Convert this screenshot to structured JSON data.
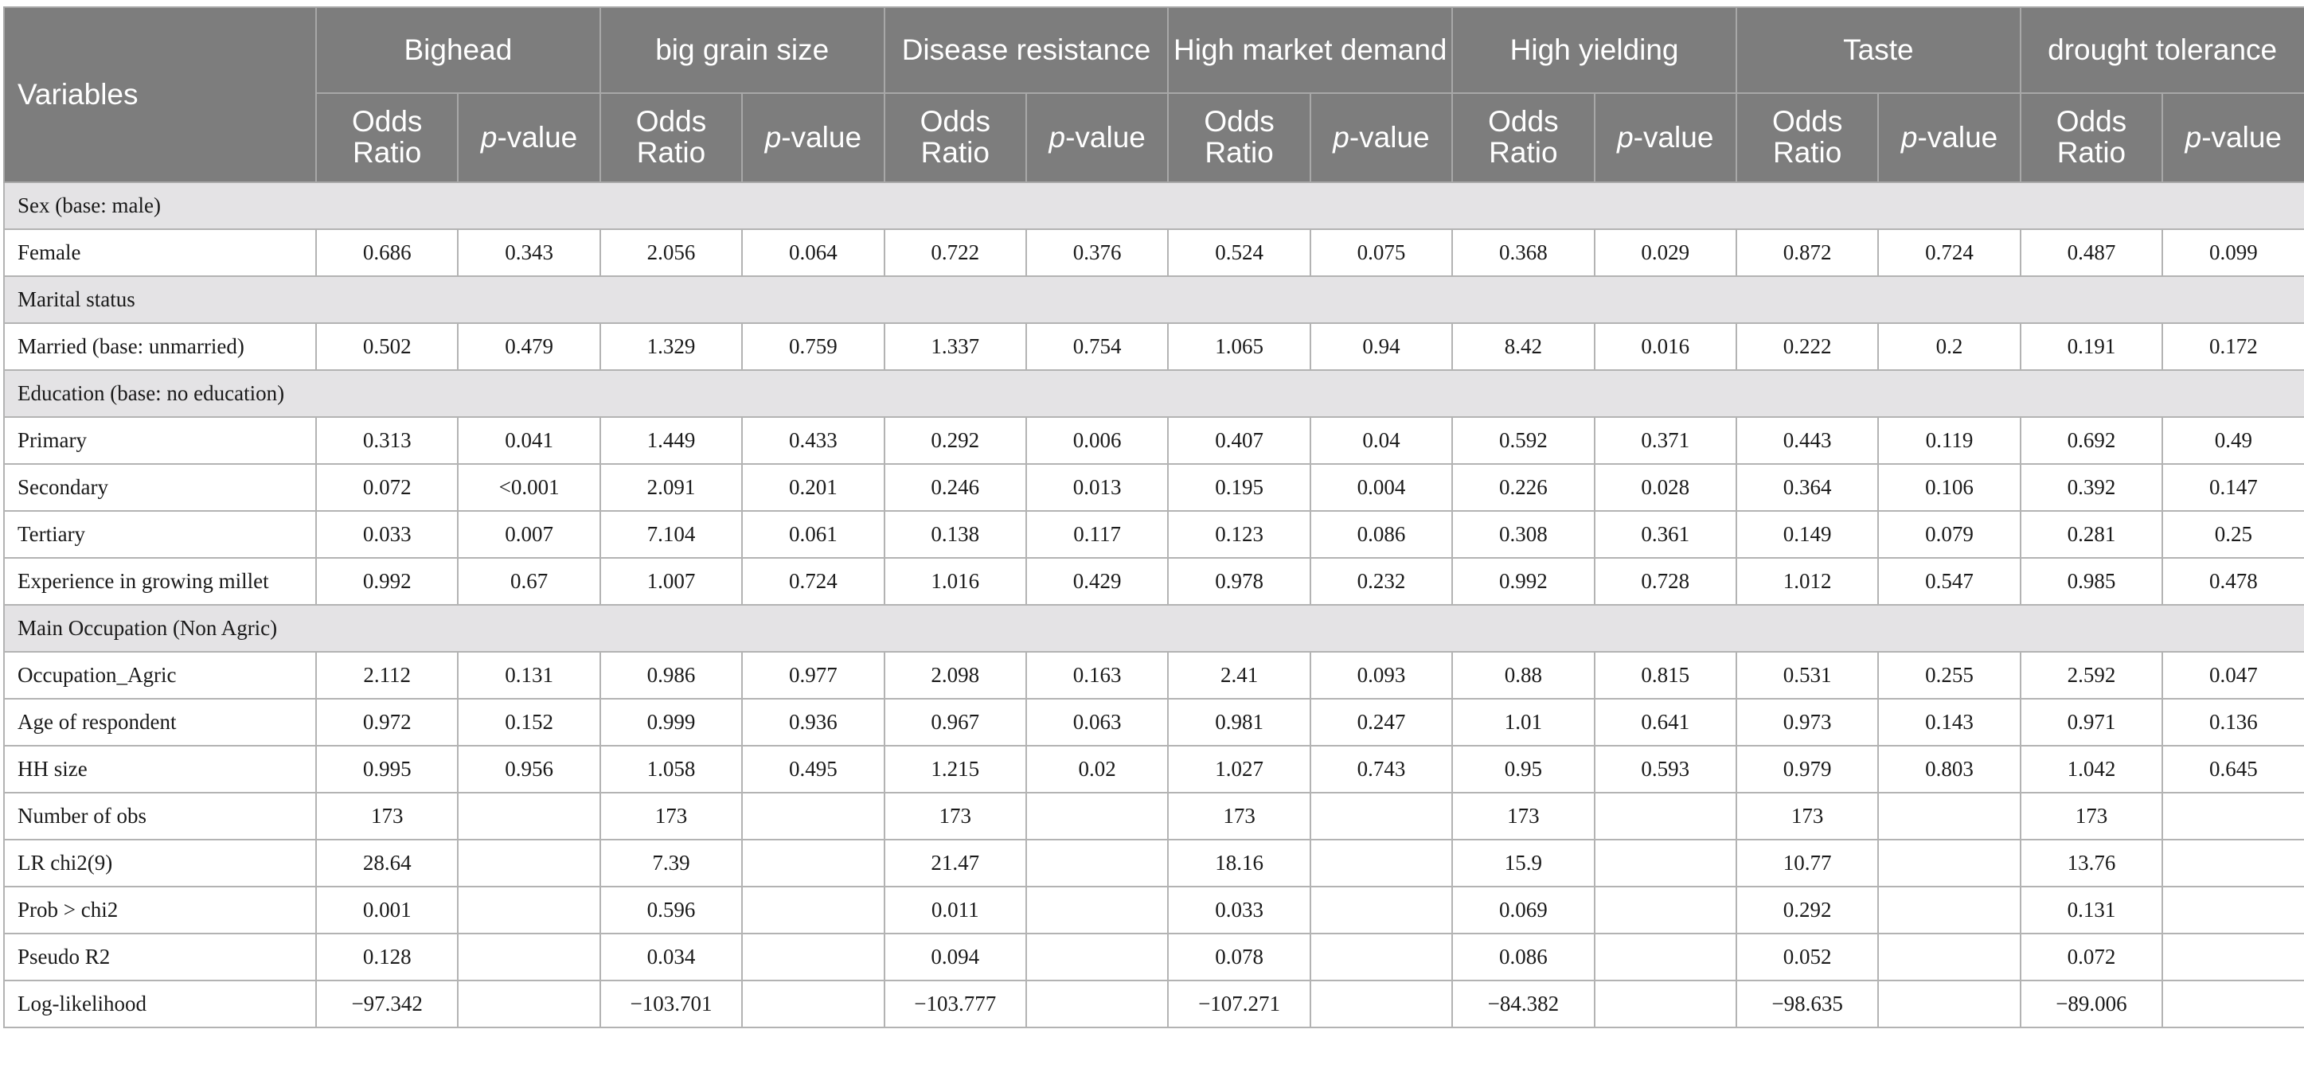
{
  "table": {
    "variables_header": "Variables",
    "odds_label": "Odds Ratio",
    "p_label_italic": "p",
    "p_label_rest": "-value",
    "groups": [
      "Bighead",
      "big grain size",
      "Disease resistance",
      "High market demand",
      "High yielding",
      "Taste",
      "drought tolerance"
    ],
    "rows": [
      {
        "type": "section",
        "label": "Sex (base: male)"
      },
      {
        "type": "data",
        "label": "Female",
        "values": [
          "0.686",
          "0.343",
          "2.056",
          "0.064",
          "0.722",
          "0.376",
          "0.524",
          "0.075",
          "0.368",
          "0.029",
          "0.872",
          "0.724",
          "0.487",
          "0.099"
        ]
      },
      {
        "type": "section",
        "label": "Marital status"
      },
      {
        "type": "data",
        "label": "Married (base: unmarried)",
        "values": [
          "0.502",
          "0.479",
          "1.329",
          "0.759",
          "1.337",
          "0.754",
          "1.065",
          "0.94",
          "8.42",
          "0.016",
          "0.222",
          "0.2",
          "0.191",
          "0.172"
        ]
      },
      {
        "type": "section",
        "label": "Education (base: no education)"
      },
      {
        "type": "data",
        "label": "Primary",
        "values": [
          "0.313",
          "0.041",
          "1.449",
          "0.433",
          "0.292",
          "0.006",
          "0.407",
          "0.04",
          "0.592",
          "0.371",
          "0.443",
          "0.119",
          "0.692",
          "0.49"
        ]
      },
      {
        "type": "data",
        "label": "Secondary",
        "values": [
          "0.072",
          "<0.001",
          "2.091",
          "0.201",
          "0.246",
          "0.013",
          "0.195",
          "0.004",
          "0.226",
          "0.028",
          "0.364",
          "0.106",
          "0.392",
          "0.147"
        ]
      },
      {
        "type": "data",
        "label": "Tertiary",
        "values": [
          "0.033",
          "0.007",
          "7.104",
          "0.061",
          "0.138",
          "0.117",
          "0.123",
          "0.086",
          "0.308",
          "0.361",
          "0.149",
          "0.079",
          "0.281",
          "0.25"
        ]
      },
      {
        "type": "data",
        "label": "Experience in growing millet",
        "values": [
          "0.992",
          "0.67",
          "1.007",
          "0.724",
          "1.016",
          "0.429",
          "0.978",
          "0.232",
          "0.992",
          "0.728",
          "1.012",
          "0.547",
          "0.985",
          "0.478"
        ]
      },
      {
        "type": "section",
        "label": "Main Occupation (Non Agric)"
      },
      {
        "type": "data",
        "label": "Occupation_Agric",
        "values": [
          "2.112",
          "0.131",
          "0.986",
          "0.977",
          "2.098",
          "0.163",
          "2.41",
          "0.093",
          "0.88",
          "0.815",
          "0.531",
          "0.255",
          "2.592",
          "0.047"
        ]
      },
      {
        "type": "data",
        "label": "Age of respondent",
        "values": [
          "0.972",
          "0.152",
          "0.999",
          "0.936",
          "0.967",
          "0.063",
          "0.981",
          "0.247",
          "1.01",
          "0.641",
          "0.973",
          "0.143",
          "0.971",
          "0.136"
        ]
      },
      {
        "type": "data",
        "label": "HH size",
        "values": [
          "0.995",
          "0.956",
          "1.058",
          "0.495",
          "1.215",
          "0.02",
          "1.027",
          "0.743",
          "0.95",
          "0.593",
          "0.979",
          "0.803",
          "1.042",
          "0.645"
        ]
      },
      {
        "type": "data",
        "label": "Number of obs",
        "values": [
          "173",
          "",
          "173",
          "",
          "173",
          "",
          "173",
          "",
          "173",
          "",
          "173",
          "",
          "173",
          ""
        ]
      },
      {
        "type": "data",
        "label": "LR chi2(9)",
        "values": [
          "28.64",
          "",
          "7.39",
          "",
          "21.47",
          "",
          "18.16",
          "",
          "15.9",
          "",
          "10.77",
          "",
          "13.76",
          ""
        ]
      },
      {
        "type": "data",
        "label": "Prob > chi2",
        "values": [
          "0.001",
          "",
          "0.596",
          "",
          "0.011",
          "",
          "0.033",
          "",
          "0.069",
          "",
          "0.292",
          "",
          "0.131",
          ""
        ]
      },
      {
        "type": "data",
        "label": "Pseudo R2",
        "values": [
          "0.128",
          "",
          "0.034",
          "",
          "0.094",
          "",
          "0.078",
          "",
          "0.086",
          "",
          "0.052",
          "",
          "0.072",
          ""
        ]
      },
      {
        "type": "data",
        "label": "Log-likelihood",
        "values": [
          "−97.342",
          "",
          "−103.701",
          "",
          "−103.777",
          "",
          "−107.271",
          "",
          "−84.382",
          "",
          "−98.635",
          "",
          "−89.006",
          ""
        ]
      }
    ]
  }
}
